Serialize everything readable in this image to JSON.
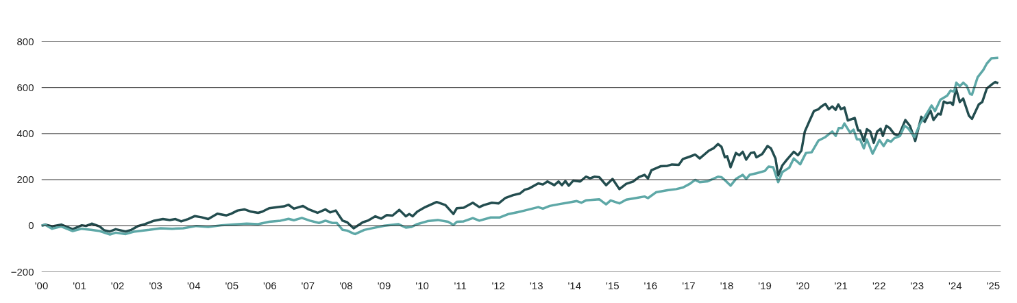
{
  "chart_data": {
    "type": "line",
    "xlim": [
      2000,
      2025.2
    ],
    "ylim": [
      -200,
      800
    ],
    "yticks": [
      -200,
      0,
      200,
      400,
      600,
      800
    ],
    "xticks": [
      {
        "value": 2000,
        "label": "'00"
      },
      {
        "value": 2001,
        "label": "'01"
      },
      {
        "value": 2002,
        "label": "'02"
      },
      {
        "value": 2003,
        "label": "'03"
      },
      {
        "value": 2004,
        "label": "'04"
      },
      {
        "value": 2005,
        "label": "'05"
      },
      {
        "value": 2006,
        "label": "'06"
      },
      {
        "value": 2007,
        "label": "'07"
      },
      {
        "value": 2008,
        "label": "'08"
      },
      {
        "value": 2009,
        "label": "'09"
      },
      {
        "value": 2010,
        "label": "'10"
      },
      {
        "value": 2011,
        "label": "'11"
      },
      {
        "value": 2012,
        "label": "'12"
      },
      {
        "value": 2013,
        "label": "'13"
      },
      {
        "value": 2014,
        "label": "'14"
      },
      {
        "value": 2015,
        "label": "'15"
      },
      {
        "value": 2016,
        "label": "'16"
      },
      {
        "value": 2017,
        "label": "'17"
      },
      {
        "value": 2018,
        "label": "'18"
      },
      {
        "value": 2019,
        "label": "'19"
      },
      {
        "value": 2020,
        "label": "'20"
      },
      {
        "value": 2021,
        "label": "'21"
      },
      {
        "value": 2022,
        "label": "'22"
      },
      {
        "value": 2023,
        "label": "'23"
      },
      {
        "value": 2024,
        "label": "'24"
      },
      {
        "value": 2025,
        "label": "'25"
      }
    ],
    "grid": "y",
    "line_style": "solid",
    "marker": "none",
    "series": [
      {
        "color": "#234d4f",
        "x": [
          2000.0,
          2000.1,
          2000.28,
          2000.52,
          2000.82,
          2001.06,
          2001.17,
          2001.32,
          2001.53,
          2001.65,
          2001.8,
          2001.95,
          2002.21,
          2002.36,
          2002.54,
          2002.72,
          2002.96,
          2003.19,
          2003.37,
          2003.52,
          2003.67,
          2003.85,
          2004.03,
          2004.2,
          2004.38,
          2004.62,
          2004.86,
          2004.98,
          2005.15,
          2005.33,
          2005.51,
          2005.69,
          2005.8,
          2005.98,
          2006.22,
          2006.37,
          2006.49,
          2006.63,
          2006.87,
          2007.02,
          2007.25,
          2007.46,
          2007.58,
          2007.73,
          2007.91,
          2008.03,
          2008.2,
          2008.44,
          2008.57,
          2008.77,
          2008.92,
          2009.07,
          2009.22,
          2009.4,
          2009.57,
          2009.66,
          2009.75,
          2009.87,
          2010.08,
          2010.38,
          2010.61,
          2010.82,
          2010.91,
          2011.09,
          2011.33,
          2011.5,
          2011.62,
          2011.83,
          2012.01,
          2012.18,
          2012.39,
          2012.57,
          2012.69,
          2012.81,
          2013.05,
          2013.17,
          2013.29,
          2013.47,
          2013.58,
          2013.67,
          2013.76,
          2013.85,
          2013.97,
          2014.15,
          2014.3,
          2014.41,
          2014.53,
          2014.65,
          2014.83,
          2015.0,
          2015.18,
          2015.36,
          2015.54,
          2015.69,
          2015.84,
          2015.93,
          2016.02,
          2016.26,
          2016.44,
          2016.56,
          2016.74,
          2016.85,
          2017.03,
          2017.17,
          2017.29,
          2017.53,
          2017.65,
          2017.77,
          2017.86,
          2017.95,
          2018.01,
          2018.1,
          2018.24,
          2018.33,
          2018.42,
          2018.51,
          2018.63,
          2018.72,
          2018.78,
          2018.93,
          2019.07,
          2019.16,
          2019.28,
          2019.35,
          2019.46,
          2019.58,
          2019.76,
          2019.87,
          2019.96,
          2020.05,
          2020.17,
          2020.29,
          2020.41,
          2020.47,
          2020.59,
          2020.68,
          2020.77,
          2020.86,
          2020.93,
          2021.0,
          2021.09,
          2021.18,
          2021.36,
          2021.45,
          2021.5,
          2021.6,
          2021.68,
          2021.77,
          2021.86,
          2021.95,
          2022.04,
          2022.1,
          2022.19,
          2022.28,
          2022.4,
          2022.52,
          2022.69,
          2022.81,
          2022.95,
          2023.11,
          2023.2,
          2023.35,
          2023.43,
          2023.55,
          2023.62,
          2023.7,
          2023.79,
          2023.88,
          2023.94,
          2024.02,
          2024.12,
          2024.21,
          2024.36,
          2024.44,
          2024.62,
          2024.71,
          2024.83,
          2024.98,
          2025.05,
          2025.13
        ],
        "values": [
          0,
          5,
          -3,
          5,
          -15,
          2,
          -1,
          9,
          -3,
          -20,
          -25,
          -15,
          -25,
          -18,
          -1,
          7,
          22,
          29,
          25,
          29,
          19,
          29,
          42,
          37,
          29,
          52,
          45,
          52,
          66,
          71,
          61,
          56,
          61,
          76,
          81,
          84,
          91,
          74,
          86,
          71,
          56,
          71,
          58,
          66,
          22,
          15,
          -11,
          15,
          22,
          41,
          31,
          46,
          44,
          69,
          41,
          51,
          41,
          61,
          81,
          103,
          90,
          51,
          76,
          78,
          100,
          81,
          90,
          100,
          97,
          120,
          133,
          140,
          156,
          162,
          184,
          179,
          192,
          176,
          192,
          176,
          194,
          174,
          196,
          192,
          213,
          206,
          213,
          211,
          176,
          203,
          159,
          182,
          192,
          211,
          221,
          205,
          241,
          258,
          260,
          266,
          264,
          290,
          300,
          309,
          292,
          326,
          336,
          355,
          343,
          297,
          302,
          254,
          316,
          306,
          321,
          287,
          316,
          319,
          297,
          311,
          346,
          336,
          292,
          218,
          262,
          287,
          321,
          306,
          326,
          409,
          454,
          498,
          506,
          516,
          529,
          506,
          518,
          503,
          527,
          506,
          513,
          457,
          468,
          414,
          414,
          368,
          419,
          409,
          360,
          409,
          421,
          390,
          434,
          424,
          398,
          392,
          459,
          434,
          368,
          473,
          451,
          500,
          459,
          486,
          483,
          539,
          532,
          535,
          525,
          596,
          537,
          552,
          478,
          464,
          527,
          537,
          596,
          616,
          624,
          619
        ]
      },
      {
        "color": "#5ea8a7",
        "x": [
          2000.0,
          2000.1,
          2000.28,
          2000.52,
          2000.82,
          2001.06,
          2001.3,
          2001.53,
          2001.8,
          2001.95,
          2002.21,
          2002.42,
          2002.83,
          2003.13,
          2003.43,
          2003.72,
          2004.07,
          2004.38,
          2004.73,
          2005.03,
          2005.39,
          2005.69,
          2005.98,
          2006.28,
          2006.49,
          2006.63,
          2006.84,
          2007.05,
          2007.29,
          2007.46,
          2007.64,
          2007.76,
          2007.91,
          2008.03,
          2008.2,
          2008.24,
          2008.48,
          2008.71,
          2009.01,
          2009.37,
          2009.57,
          2009.72,
          2009.87,
          2010.14,
          2010.41,
          2010.68,
          2010.82,
          2010.91,
          2011.09,
          2011.33,
          2011.5,
          2011.8,
          2012.04,
          2012.27,
          2012.51,
          2012.69,
          2013.05,
          2013.17,
          2013.35,
          2013.64,
          2013.82,
          2014.06,
          2014.18,
          2014.3,
          2014.65,
          2014.83,
          2014.95,
          2015.18,
          2015.36,
          2015.6,
          2015.84,
          2015.93,
          2016.14,
          2016.44,
          2016.67,
          2016.85,
          2017.03,
          2017.17,
          2017.29,
          2017.5,
          2017.77,
          2017.86,
          2017.95,
          2018.1,
          2018.24,
          2018.42,
          2018.51,
          2018.6,
          2018.78,
          2019.0,
          2019.1,
          2019.22,
          2019.35,
          2019.46,
          2019.64,
          2019.76,
          2019.93,
          2020.08,
          2020.23,
          2020.41,
          2020.59,
          2020.77,
          2020.86,
          2020.94,
          2021.03,
          2021.09,
          2021.24,
          2021.33,
          2021.42,
          2021.5,
          2021.6,
          2021.68,
          2021.83,
          2022.01,
          2022.12,
          2022.22,
          2022.31,
          2022.4,
          2022.55,
          2022.67,
          2022.76,
          2022.93,
          2023.08,
          2023.2,
          2023.38,
          2023.47,
          2023.61,
          2023.79,
          2023.88,
          2023.97,
          2024.03,
          2024.12,
          2024.21,
          2024.3,
          2024.39,
          2024.44,
          2024.59,
          2024.74,
          2024.83,
          2024.95,
          2025.13
        ],
        "values": [
          0,
          4,
          -13,
          -3,
          -23,
          -13,
          -18,
          -23,
          -38,
          -30,
          -36,
          -26,
          -18,
          -11,
          -13,
          -11,
          -1,
          -5,
          2,
          5,
          9,
          7,
          17,
          22,
          30,
          24,
          34,
          22,
          12,
          22,
          12,
          12,
          -18,
          -21,
          -34,
          -36,
          -18,
          -10,
          0,
          7,
          -8,
          -5,
          7,
          20,
          25,
          17,
          4,
          17,
          19,
          33,
          22,
          36,
          36,
          51,
          59,
          66,
          81,
          74,
          86,
          95,
          100,
          107,
          100,
          110,
          115,
          93,
          110,
          97,
          113,
          120,
          127,
          120,
          145,
          154,
          159,
          166,
          182,
          199,
          189,
          193,
          213,
          211,
          198,
          174,
          203,
          221,
          203,
          221,
          228,
          238,
          257,
          254,
          189,
          233,
          252,
          292,
          267,
          316,
          319,
          370,
          385,
          409,
          390,
          424,
          424,
          444,
          404,
          417,
          375,
          375,
          336,
          375,
          313,
          372,
          346,
          372,
          365,
          380,
          390,
          434,
          424,
          385,
          444,
          473,
          522,
          498,
          547,
          565,
          587,
          582,
          621,
          606,
          621,
          608,
          572,
          569,
          645,
          677,
          704,
          727,
          729
        ]
      }
    ]
  }
}
